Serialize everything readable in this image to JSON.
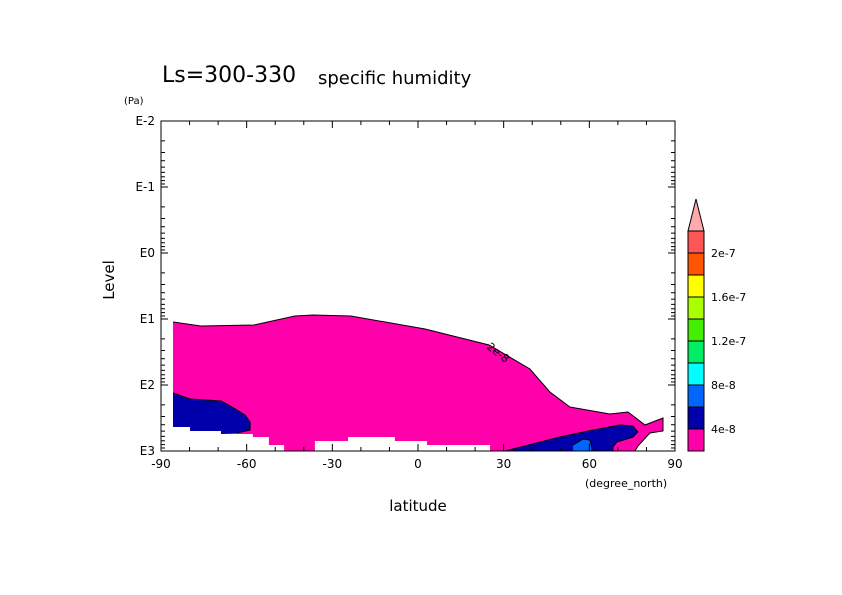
{
  "chart_data": {
    "type": "heatmap",
    "subtype": "filled-contour",
    "title_main": "Ls=300-330",
    "title_sub": "specific humidity",
    "xlabel": "latitude",
    "xunits": "(degree_north)",
    "ylabel": "Level",
    "yunits": "(Pa)",
    "xlim": [
      -90,
      90
    ],
    "ylim_log10": [
      -2,
      3
    ],
    "x_ticks": [
      -90,
      -60,
      -30,
      0,
      30,
      60,
      90
    ],
    "x_tick_labels": [
      "-90",
      "-60",
      "-30",
      "0",
      "30",
      "60",
      "90"
    ],
    "y_ticks_log10": [
      -2,
      -1,
      0,
      1,
      2,
      3
    ],
    "y_tick_labels": [
      "E-2",
      "E-1",
      "E0",
      "E1",
      "E2",
      "E3"
    ],
    "contour_label": "2e-8",
    "colorbar": {
      "colors": [
        "#ff00aa",
        "#0000aa",
        "#0066ff",
        "#00ffff",
        "#00ee66",
        "#44ee00",
        "#aaff00",
        "#ffff00",
        "#ff5500",
        "#ff5555"
      ],
      "overflow_color": "#ffaaaa",
      "levels": [
        2e-08,
        4e-08,
        6e-08,
        8e-08,
        1e-07,
        1.2e-07,
        1.4e-07,
        1.6e-07,
        1.8e-07,
        2e-07
      ],
      "labels": [
        {
          "value": 4e-08,
          "text": "4e-8"
        },
        {
          "value": 8e-08,
          "text": "8e-8"
        },
        {
          "value": 1.2e-07,
          "text": "1.2e-7"
        },
        {
          "value": 1.6e-07,
          "text": "1.6e-7"
        },
        {
          "value": 2e-07,
          "text": "2e-7"
        }
      ]
    },
    "regions": [
      {
        "name": "2e-8 to 4e-8",
        "color": "#ff00aa",
        "outline_points": 19,
        "points": [
          [
            -85.8,
            1.045
          ],
          [
            -76.0,
            1.106
          ],
          [
            -57.4,
            1.091
          ],
          [
            -43.1,
            0.955
          ],
          [
            -36.8,
            0.939
          ],
          [
            -23.5,
            0.955
          ],
          [
            2.5,
            1.152
          ],
          [
            24.9,
            1.394
          ],
          [
            39.2,
            1.758
          ],
          [
            46.2,
            2.106
          ],
          [
            53.2,
            2.333
          ],
          [
            67.2,
            2.439
          ],
          [
            73.5,
            2.409
          ],
          [
            79.5,
            2.606
          ],
          [
            85.8,
            2.5
          ],
          [
            85.8,
            2.697
          ],
          [
            81.2,
            2.727
          ],
          [
            77.0,
            2.924
          ],
          [
            76.0,
            3.0
          ],
          [
            25.2,
            3.0
          ],
          [
            25.2,
            2.909
          ],
          [
            3.2,
            2.909
          ],
          [
            3.2,
            2.848
          ],
          [
            -8.1,
            2.848
          ],
          [
            -8.1,
            2.788
          ],
          [
            -24.5,
            2.788
          ],
          [
            -24.5,
            2.848
          ],
          [
            -36.1,
            2.848
          ],
          [
            -36.1,
            3.0
          ],
          [
            -46.9,
            3.0
          ],
          [
            -46.9,
            2.909
          ],
          [
            -52.2,
            2.909
          ],
          [
            -52.2,
            2.788
          ],
          [
            -57.8,
            2.788
          ],
          [
            -57.8,
            2.742
          ],
          [
            -69.0,
            2.742
          ],
          [
            -69.0,
            2.697
          ],
          [
            -79.8,
            2.697
          ],
          [
            -79.8,
            2.636
          ],
          [
            -85.8,
            2.636
          ]
        ]
      },
      {
        "name": "4e-8 to 6e-8 south",
        "color": "#0000aa",
        "outline_points": 8,
        "points": [
          [
            -85.8,
            2.121
          ],
          [
            -79.8,
            2.212
          ],
          [
            -69.0,
            2.242
          ],
          [
            -65.1,
            2.333
          ],
          [
            -60.6,
            2.455
          ],
          [
            -58.8,
            2.561
          ],
          [
            -58.8,
            2.682
          ],
          [
            -63.4,
            2.727
          ],
          [
            -69.0,
            2.742
          ],
          [
            -69.0,
            2.697
          ],
          [
            -79.8,
            2.697
          ],
          [
            -79.8,
            2.636
          ],
          [
            -85.8,
            2.636
          ]
        ]
      },
      {
        "name": "4e-8 to 6e-8 north",
        "color": "#0000aa",
        "outline_points": 10,
        "points": [
          [
            30.5,
            3.0
          ],
          [
            49.7,
            2.788
          ],
          [
            61.3,
            2.682
          ],
          [
            70.7,
            2.606
          ],
          [
            75.3,
            2.621
          ],
          [
            77.0,
            2.712
          ],
          [
            75.3,
            2.788
          ],
          [
            69.7,
            2.864
          ],
          [
            68.3,
            2.939
          ],
          [
            68.3,
            3.0
          ]
        ]
      },
      {
        "name": "6e-8 to 8e-8 north",
        "color": "#0066ff",
        "outline_points": 5,
        "points": [
          [
            54.3,
            2.909
          ],
          [
            57.8,
            2.818
          ],
          [
            60.2,
            2.833
          ],
          [
            60.9,
            2.955
          ],
          [
            60.9,
            3.0
          ],
          [
            54.3,
            3.0
          ]
        ]
      }
    ]
  }
}
